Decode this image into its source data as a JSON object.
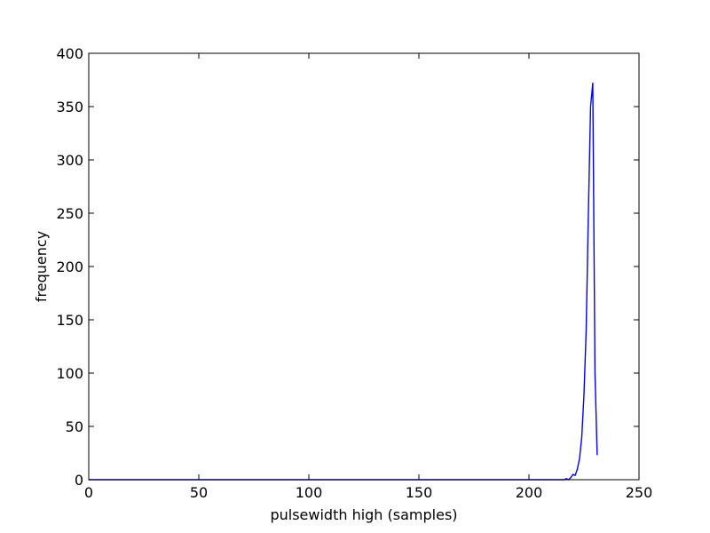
{
  "chart_data": {
    "type": "line",
    "title": "",
    "xlabel": "pulsewidth high (samples)",
    "ylabel": "frequency",
    "xlim": [
      0,
      250
    ],
    "ylim": [
      0,
      400
    ],
    "xticks": [
      0,
      50,
      100,
      150,
      200,
      250
    ],
    "yticks": [
      0,
      50,
      100,
      150,
      200,
      250,
      300,
      350,
      400
    ],
    "x_tick_labels": [
      "0",
      "50",
      "100",
      "150",
      "200",
      "250"
    ],
    "y_tick_labels": [
      "0",
      "50",
      "100",
      "150",
      "200",
      "250",
      "300",
      "350",
      "400"
    ],
    "grid": false,
    "legend": "none",
    "series": [
      {
        "color": "#0000ff",
        "x": [
          0,
          215,
          216,
          217,
          218,
          219,
          220,
          221,
          222,
          223,
          224,
          225,
          226,
          227,
          228,
          229,
          230,
          231
        ],
        "y": [
          0,
          0,
          0,
          1,
          0,
          2,
          5,
          4,
          10,
          20,
          40,
          80,
          140,
          250,
          350,
          372,
          100,
          23
        ]
      }
    ]
  }
}
